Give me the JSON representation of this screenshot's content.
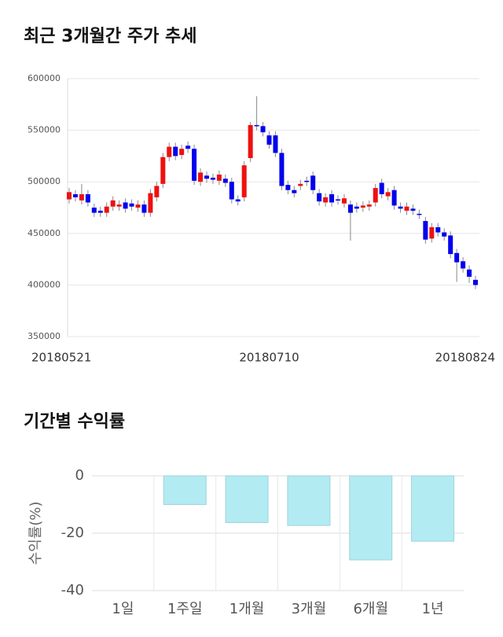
{
  "chart_data": [
    {
      "type": "candlestick",
      "title": "최근 3개월간 주가 추세",
      "categories": [
        "20180521",
        null,
        null,
        null,
        null,
        null,
        null,
        null,
        null,
        null,
        null,
        null,
        null,
        null,
        null,
        null,
        null,
        null,
        null,
        null,
        null,
        null,
        null,
        null,
        null,
        null,
        null,
        null,
        null,
        null,
        null,
        null,
        "20180710",
        null,
        null,
        null,
        null,
        null,
        null,
        null,
        null,
        null,
        null,
        null,
        null,
        null,
        null,
        null,
        null,
        null,
        null,
        null,
        null,
        null,
        null,
        null,
        null,
        null,
        null,
        null,
        null,
        null,
        null,
        null,
        null,
        "20180824"
      ],
      "open": [
        483000,
        488000,
        482000,
        488000,
        475000,
        472000,
        470000,
        476000,
        476000,
        480000,
        479000,
        475000,
        478000,
        470000,
        485000,
        498000,
        524000,
        534000,
        526000,
        535000,
        532000,
        500000,
        506000,
        504000,
        501000,
        503000,
        500000,
        483000,
        485000,
        523000,
        555000,
        554000,
        545000,
        545000,
        528000,
        497000,
        492000,
        496000,
        501000,
        506000,
        489000,
        480000,
        488000,
        483000,
        479000,
        478000,
        476000,
        475000,
        476000,
        480000,
        499000,
        486000,
        492000,
        476000,
        472000,
        474000,
        469000,
        462000,
        445000,
        456000,
        451000,
        448000,
        431000,
        423000,
        415000,
        405000
      ],
      "high": [
        494000,
        492000,
        498000,
        492000,
        479000,
        476000,
        480000,
        486000,
        482000,
        484000,
        483000,
        482000,
        482000,
        493000,
        500000,
        528000,
        538000,
        538000,
        536000,
        539000,
        536000,
        513000,
        510000,
        508000,
        511000,
        507000,
        504000,
        487000,
        520000,
        558000,
        583000,
        558000,
        549000,
        549000,
        532000,
        501000,
        496000,
        502000,
        505000,
        510000,
        493000,
        489000,
        492000,
        487000,
        488000,
        482000,
        480000,
        481000,
        482000,
        498000,
        503000,
        494000,
        496000,
        480000,
        480000,
        478000,
        473000,
        466000,
        460000,
        460000,
        455000,
        452000,
        435000,
        427000,
        419000,
        409000
      ],
      "low": [
        479000,
        481000,
        478000,
        476000,
        466000,
        466000,
        466000,
        472000,
        472000,
        470000,
        472000,
        471000,
        466000,
        466000,
        481000,
        494000,
        520000,
        521000,
        522000,
        528000,
        497000,
        496000,
        499000,
        498000,
        497000,
        495000,
        479000,
        477000,
        481000,
        519000,
        550000,
        544000,
        532000,
        524000,
        492000,
        488000,
        485000,
        492000,
        496000,
        488000,
        477000,
        476000,
        476000,
        478000,
        475000,
        443000,
        470000,
        471000,
        472000,
        476000,
        484000,
        482000,
        473000,
        470000,
        468000,
        468000,
        464000,
        440000,
        441000,
        447000,
        443000,
        426000,
        403000,
        412000,
        402000,
        396000
      ],
      "close": [
        490000,
        485000,
        488000,
        480000,
        470000,
        470000,
        476000,
        482000,
        478000,
        474000,
        476000,
        478000,
        470000,
        489000,
        496000,
        524000,
        534000,
        525000,
        532000,
        532000,
        501000,
        509000,
        503000,
        502000,
        507000,
        499000,
        483000,
        481000,
        516000,
        555000,
        554000,
        548000,
        536000,
        528000,
        496000,
        492000,
        489000,
        498000,
        500000,
        492000,
        481000,
        485000,
        480000,
        482000,
        484000,
        470000,
        474000,
        477000,
        478000,
        494000,
        488000,
        490000,
        477000,
        474000,
        476000,
        472000,
        468000,
        444000,
        456000,
        451000,
        447000,
        430000,
        422000,
        416000,
        408000,
        400000
      ],
      "up_color": "#ee1111",
      "down_color": "#0000ee",
      "ylim": [
        350000,
        600000
      ],
      "yticks": [
        350000,
        400000,
        450000,
        500000,
        550000,
        600000
      ],
      "grid": true
    },
    {
      "type": "bar",
      "title": "기간별 수익률",
      "ylabel": "수익률(%)",
      "categories": [
        "1일",
        "1주일",
        "1개월",
        "3개월",
        "6개월",
        "1년"
      ],
      "values": [
        0,
        -10,
        -16.3,
        -17.3,
        -29.3,
        -22.8
      ],
      "color": "#b3ebf2",
      "ylim": [
        -40,
        0
      ],
      "yticks": [
        -40,
        -20,
        0
      ],
      "grid": true
    }
  ]
}
